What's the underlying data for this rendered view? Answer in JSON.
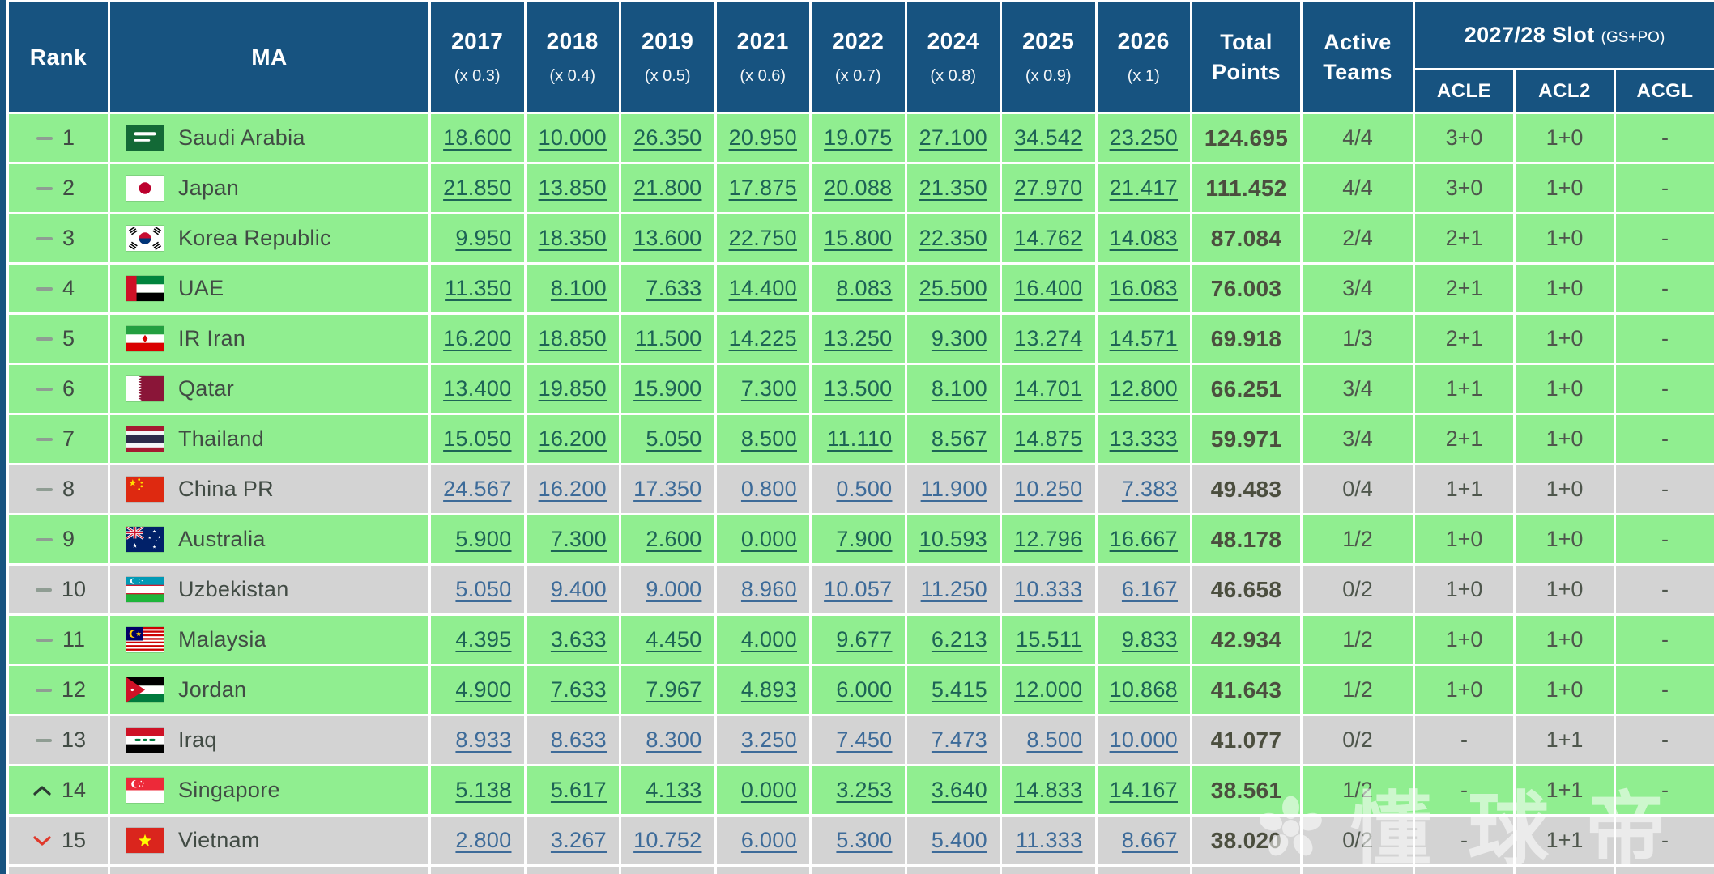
{
  "table": {
    "headers": {
      "rank": "Rank",
      "ma": "MA",
      "years": [
        {
          "year": "2017",
          "mult": "(x 0.3)"
        },
        {
          "year": "2018",
          "mult": "(x 0.4)"
        },
        {
          "year": "2019",
          "mult": "(x 0.5)"
        },
        {
          "year": "2021",
          "mult": "(x 0.6)"
        },
        {
          "year": "2022",
          "mult": "(x 0.7)"
        },
        {
          "year": "2024",
          "mult": "(x 0.8)"
        },
        {
          "year": "2025",
          "mult": "(x 0.9)"
        },
        {
          "year": "2026",
          "mult": "(x 1)"
        }
      ],
      "total": "Total Points",
      "active": "Active Teams",
      "slot_group": {
        "title": "2027/28 Slot",
        "suffix": "(GS+PO)",
        "columns": [
          "ACLE",
          "ACL2",
          "ACGL"
        ]
      }
    },
    "rows": [
      {
        "rank": "1",
        "trend": "same",
        "country": "Saudi Arabia",
        "flag": "sa",
        "shade": "green",
        "values": [
          "18.600",
          "10.000",
          "26.350",
          "20.950",
          "19.075",
          "27.100",
          "34.542",
          "23.250"
        ],
        "total": "124.695",
        "active": "4/4",
        "slots": [
          "3+0",
          "1+0",
          "-"
        ]
      },
      {
        "rank": "2",
        "trend": "same",
        "country": "Japan",
        "flag": "jp",
        "shade": "green",
        "values": [
          "21.850",
          "13.850",
          "21.800",
          "17.875",
          "20.088",
          "21.350",
          "27.970",
          "21.417"
        ],
        "total": "111.452",
        "active": "4/4",
        "slots": [
          "3+0",
          "1+0",
          "-"
        ]
      },
      {
        "rank": "3",
        "trend": "same",
        "country": "Korea Republic",
        "flag": "kr",
        "shade": "green",
        "values": [
          "9.950",
          "18.350",
          "13.600",
          "22.750",
          "15.800",
          "22.350",
          "14.762",
          "14.083"
        ],
        "total": "87.084",
        "active": "2/4",
        "slots": [
          "2+1",
          "1+0",
          "-"
        ]
      },
      {
        "rank": "4",
        "trend": "same",
        "country": "UAE",
        "flag": "ae",
        "shade": "green",
        "values": [
          "11.350",
          "8.100",
          "7.633",
          "14.400",
          "8.083",
          "25.500",
          "16.400",
          "16.083"
        ],
        "total": "76.003",
        "active": "3/4",
        "slots": [
          "2+1",
          "1+0",
          "-"
        ]
      },
      {
        "rank": "5",
        "trend": "same",
        "country": "IR Iran",
        "flag": "ir",
        "shade": "green",
        "values": [
          "16.200",
          "18.850",
          "11.500",
          "14.225",
          "13.250",
          "9.300",
          "13.274",
          "14.571"
        ],
        "total": "69.918",
        "active": "1/3",
        "slots": [
          "2+1",
          "1+0",
          "-"
        ]
      },
      {
        "rank": "6",
        "trend": "same",
        "country": "Qatar",
        "flag": "qa",
        "shade": "green",
        "values": [
          "13.400",
          "19.850",
          "15.900",
          "7.300",
          "13.500",
          "8.100",
          "14.701",
          "12.800"
        ],
        "total": "66.251",
        "active": "3/4",
        "slots": [
          "1+1",
          "1+0",
          "-"
        ]
      },
      {
        "rank": "7",
        "trend": "same",
        "country": "Thailand",
        "flag": "th",
        "shade": "green",
        "values": [
          "15.050",
          "16.200",
          "5.050",
          "8.500",
          "11.110",
          "8.567",
          "14.875",
          "13.333"
        ],
        "total": "59.971",
        "active": "3/4",
        "slots": [
          "2+1",
          "1+0",
          "-"
        ]
      },
      {
        "rank": "8",
        "trend": "same",
        "country": "China PR",
        "flag": "cn",
        "shade": "gray",
        "values": [
          "24.567",
          "16.200",
          "17.350",
          "0.800",
          "0.500",
          "11.900",
          "10.250",
          "7.383"
        ],
        "total": "49.483",
        "active": "0/4",
        "slots": [
          "1+1",
          "1+0",
          "-"
        ]
      },
      {
        "rank": "9",
        "trend": "same",
        "country": "Australia",
        "flag": "au",
        "shade": "green",
        "values": [
          "5.900",
          "7.300",
          "2.600",
          "0.000",
          "7.900",
          "10.593",
          "12.796",
          "16.667"
        ],
        "total": "48.178",
        "active": "1/2",
        "slots": [
          "1+0",
          "1+0",
          "-"
        ]
      },
      {
        "rank": "10",
        "trend": "same",
        "country": "Uzbekistan",
        "flag": "uz",
        "shade": "gray",
        "values": [
          "5.050",
          "9.400",
          "9.000",
          "8.960",
          "10.057",
          "11.250",
          "10.333",
          "6.167"
        ],
        "total": "46.658",
        "active": "0/2",
        "slots": [
          "1+0",
          "1+0",
          "-"
        ]
      },
      {
        "rank": "11",
        "trend": "same",
        "country": "Malaysia",
        "flag": "my",
        "shade": "green",
        "values": [
          "4.395",
          "3.633",
          "4.450",
          "4.000",
          "9.677",
          "6.213",
          "15.511",
          "9.833"
        ],
        "total": "42.934",
        "active": "1/2",
        "slots": [
          "1+0",
          "1+0",
          "-"
        ]
      },
      {
        "rank": "12",
        "trend": "same",
        "country": "Jordan",
        "flag": "jo",
        "shade": "green",
        "values": [
          "4.900",
          "7.633",
          "7.967",
          "4.893",
          "6.000",
          "5.415",
          "12.000",
          "10.868"
        ],
        "total": "41.643",
        "active": "1/2",
        "slots": [
          "1+0",
          "1+0",
          "-"
        ]
      },
      {
        "rank": "13",
        "trend": "same",
        "country": "Iraq",
        "flag": "iq",
        "shade": "gray",
        "values": [
          "8.933",
          "8.633",
          "8.300",
          "3.250",
          "7.450",
          "7.473",
          "8.500",
          "10.000"
        ],
        "total": "41.077",
        "active": "0/2",
        "slots": [
          "-",
          "1+1",
          "-"
        ]
      },
      {
        "rank": "14",
        "trend": "up",
        "country": "Singapore",
        "flag": "sg",
        "shade": "green",
        "values": [
          "5.138",
          "5.617",
          "4.133",
          "0.000",
          "3.253",
          "3.640",
          "14.833",
          "14.167"
        ],
        "total": "38.561",
        "active": "1/2",
        "slots": [
          "-",
          "1+1",
          "-"
        ]
      },
      {
        "rank": "15",
        "trend": "down",
        "country": "Vietnam",
        "flag": "vn",
        "shade": "gray",
        "values": [
          "2.800",
          "3.267",
          "10.752",
          "6.000",
          "5.300",
          "5.400",
          "11.333",
          "8.667"
        ],
        "total": "38.020",
        "active": "0/2",
        "slots": [
          "-",
          "1+1",
          "-"
        ]
      }
    ]
  },
  "watermark": {
    "text": "懂球帝"
  },
  "colors": {
    "header_bg": "#175380",
    "row_green": "#90ee90",
    "row_gray": "#d3d3d3",
    "border_white": "#ffffff",
    "link_green": "#1d6355",
    "link_gray": "#3d6b99",
    "text_dark": "#414b44",
    "total_color": "#4b4e3e",
    "meta_color": "#4e564c",
    "trend_gray": "#8f9d93",
    "trend_dark": "#2c3a33",
    "trend_red": "#e0392b"
  }
}
